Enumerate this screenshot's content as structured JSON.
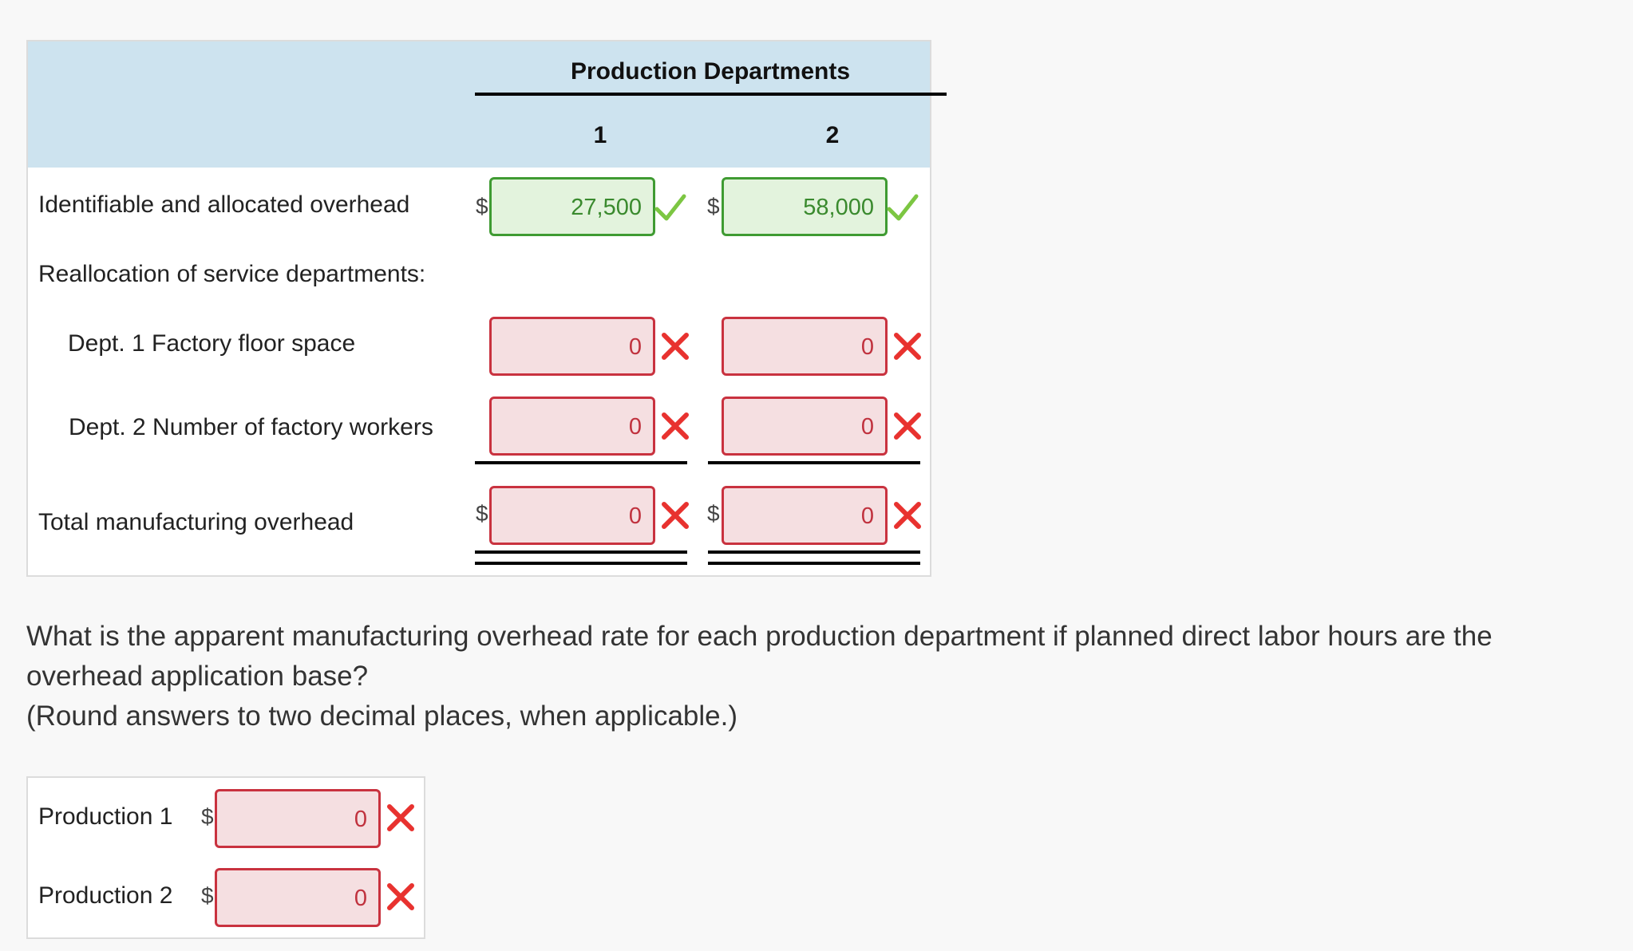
{
  "allocation_table": {
    "group_header": "Production Departments",
    "col1_header": "1",
    "col2_header": "2",
    "currency_symbol": "$",
    "rows": {
      "identifiable": {
        "label": "Identifiable and allocated overhead",
        "dept1": {
          "value": "27,500",
          "status": "correct"
        },
        "dept2": {
          "value": "58,000",
          "status": "correct"
        }
      },
      "reallocation_heading": {
        "label": "Reallocation of service departments:"
      },
      "dept1_floor": {
        "label": "Dept. 1 Factory floor space",
        "dept1": {
          "value": "0",
          "status": "incorrect"
        },
        "dept2": {
          "value": "0",
          "status": "incorrect"
        }
      },
      "dept2_workers": {
        "label": "Dept. 2 Number of factory workers",
        "dept1": {
          "value": "0",
          "status": "incorrect"
        },
        "dept2": {
          "value": "0",
          "status": "incorrect"
        }
      },
      "total": {
        "label": "Total manufacturing overhead",
        "dept1": {
          "value": "0",
          "status": "incorrect"
        },
        "dept2": {
          "value": "0",
          "status": "incorrect"
        }
      }
    }
  },
  "question": {
    "line1": "What is the apparent manufacturing overhead rate for each production department if planned direct labor hours are the",
    "line2": "overhead application base?",
    "line3": "(Round answers to two decimal places, when applicable.)"
  },
  "rate_table": {
    "currency_symbol": "$",
    "rows": {
      "production1": {
        "label": "Production 1",
        "value": "0",
        "status": "incorrect"
      },
      "production2": {
        "label": "Production 2",
        "value": "0",
        "status": "incorrect"
      }
    }
  },
  "icons": {
    "correct": "check-icon",
    "incorrect": "cross-icon"
  },
  "colors": {
    "header_bg": "#cde3ef",
    "correct_border": "#3f9b32",
    "correct_bg": "#e3f3dd",
    "correct_mark": "#7cc642",
    "incorrect_border": "#c9323f",
    "incorrect_bg": "#f5dfe1",
    "incorrect_mark": "#e8322f"
  }
}
